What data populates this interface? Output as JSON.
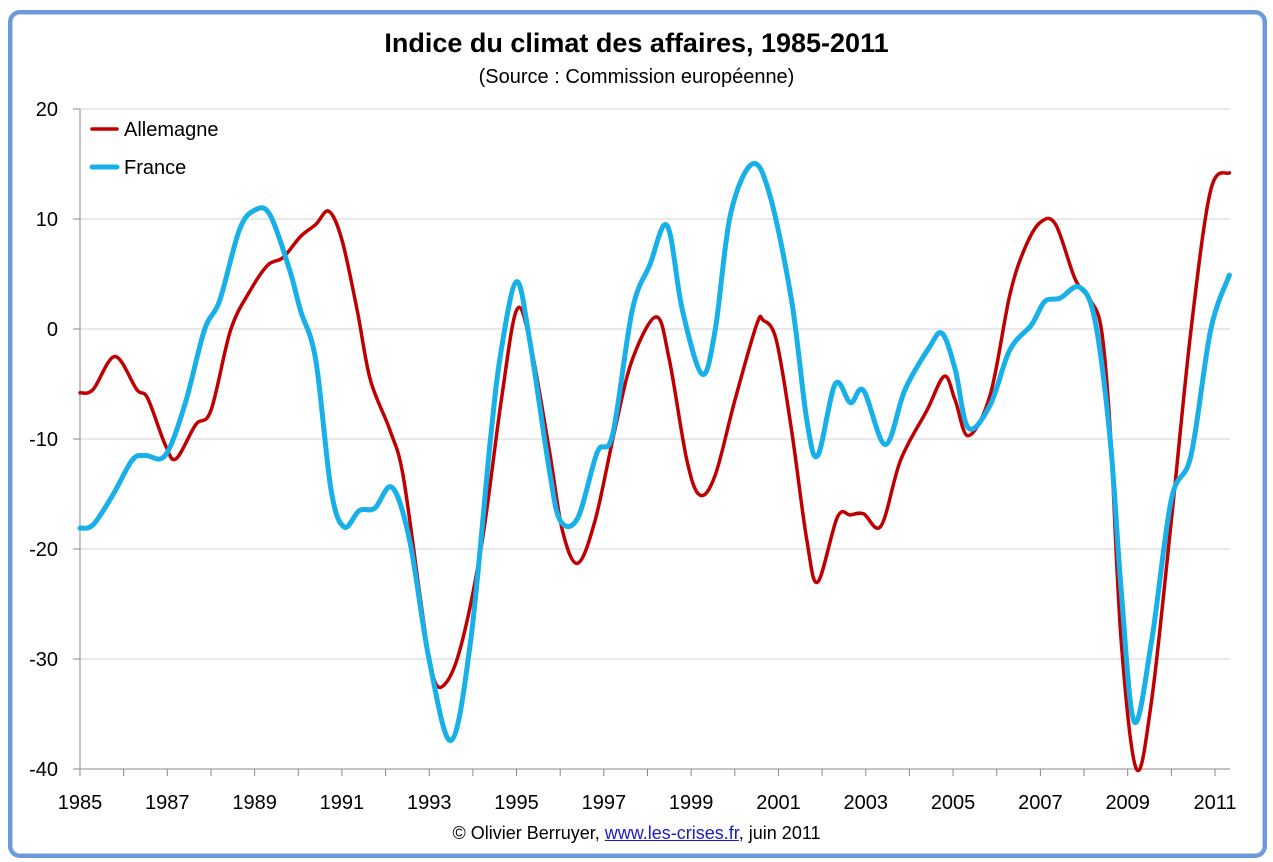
{
  "chart_data": {
    "type": "line",
    "title": "Indice du climat des affaires, 1985-2011",
    "subtitle": "(Source : Commission européenne)",
    "xlim": [
      1985,
      2011.35
    ],
    "ylim": [
      -40,
      20
    ],
    "x_ticks": [
      "1985",
      "1987",
      "1989",
      "1991",
      "1993",
      "1995",
      "1997",
      "1999",
      "2001",
      "2003",
      "2005",
      "2007",
      "2009",
      "2011"
    ],
    "y_ticks": [
      "20",
      "10",
      "0",
      "-10",
      "-20",
      "-30",
      "-40"
    ],
    "grid": "horizontal",
    "legend": "top-left",
    "series": [
      {
        "name": "Allemagne",
        "color": "#c00000",
        "points": [
          [
            1985,
            -5.8
          ],
          [
            1985.3,
            -5.5
          ],
          [
            1985.8,
            -2.5
          ],
          [
            1986.3,
            -5.5
          ],
          [
            1986.55,
            -6.3
          ],
          [
            1986.95,
            -10.5
          ],
          [
            1987.2,
            -11.8
          ],
          [
            1987.65,
            -8.7
          ],
          [
            1988,
            -7.4
          ],
          [
            1988.45,
            -0.1
          ],
          [
            1988.9,
            3.5
          ],
          [
            1989.3,
            5.8
          ],
          [
            1989.65,
            6.5
          ],
          [
            1990.05,
            8.4
          ],
          [
            1990.4,
            9.5
          ],
          [
            1990.7,
            10.7
          ],
          [
            1991,
            8.1
          ],
          [
            1991.35,
            1.7
          ],
          [
            1991.65,
            -4.6
          ],
          [
            1992.1,
            -9.2
          ],
          [
            1992.4,
            -13.3
          ],
          [
            1992.8,
            -24.6
          ],
          [
            1993.05,
            -31
          ],
          [
            1993.3,
            -32.5
          ],
          [
            1993.7,
            -29.2
          ],
          [
            1994.2,
            -19.6
          ],
          [
            1994.65,
            -6.5
          ],
          [
            1995,
            1.7
          ],
          [
            1995.3,
            -1
          ],
          [
            1995.75,
            -11
          ],
          [
            1996.05,
            -18.3
          ],
          [
            1996.4,
            -21.3
          ],
          [
            1996.8,
            -17.4
          ],
          [
            1997.25,
            -9.2
          ],
          [
            1997.65,
            -2.8
          ],
          [
            1998.2,
            1.1
          ],
          [
            1998.5,
            -2.8
          ],
          [
            1998.9,
            -11.9
          ],
          [
            1999.2,
            -15.1
          ],
          [
            1999.55,
            -13.3
          ],
          [
            2000,
            -6.5
          ],
          [
            2000.5,
            0.4
          ],
          [
            2000.65,
            0.8
          ],
          [
            2000.95,
            -1
          ],
          [
            2001.3,
            -9.2
          ],
          [
            2001.65,
            -19.2
          ],
          [
            2001.9,
            -23
          ],
          [
            2002.35,
            -17.1
          ],
          [
            2002.65,
            -16.9
          ],
          [
            2002.95,
            -16.8
          ],
          [
            2003.35,
            -17.9
          ],
          [
            2003.8,
            -11.9
          ],
          [
            2004.4,
            -7.4
          ],
          [
            2004.8,
            -4.3
          ],
          [
            2005.05,
            -6.5
          ],
          [
            2005.35,
            -9.7
          ],
          [
            2005.85,
            -6
          ],
          [
            2006.3,
            3.1
          ],
          [
            2006.65,
            7.4
          ],
          [
            2007,
            9.7
          ],
          [
            2007.35,
            9.5
          ],
          [
            2007.8,
            4.5
          ],
          [
            2008.15,
            2.6
          ],
          [
            2008.4,
            -0.1
          ],
          [
            2008.6,
            -9.2
          ],
          [
            2008.85,
            -28.3
          ],
          [
            2009.2,
            -40
          ],
          [
            2009.55,
            -33.7
          ],
          [
            2010,
            -17.4
          ],
          [
            2010.45,
            -0.1
          ],
          [
            2010.9,
            12.6
          ],
          [
            2011.33,
            14.2
          ]
        ]
      },
      {
        "name": "France",
        "color": "#17b0e8",
        "points": [
          [
            1985,
            -18.1
          ],
          [
            1985.3,
            -17.8
          ],
          [
            1985.75,
            -15.1
          ],
          [
            1986.2,
            -11.9
          ],
          [
            1986.5,
            -11.5
          ],
          [
            1986.95,
            -11.5
          ],
          [
            1987.4,
            -6.9
          ],
          [
            1987.85,
            -0.1
          ],
          [
            1988.2,
            2.6
          ],
          [
            1988.65,
            9
          ],
          [
            1989,
            10.8
          ],
          [
            1989.35,
            10.4
          ],
          [
            1989.8,
            5.4
          ],
          [
            1990.05,
            1.7
          ],
          [
            1990.4,
            -2.8
          ],
          [
            1990.75,
            -14.6
          ],
          [
            1991.05,
            -18
          ],
          [
            1991.4,
            -16.5
          ],
          [
            1991.75,
            -16.3
          ],
          [
            1992.15,
            -14.4
          ],
          [
            1992.55,
            -19.2
          ],
          [
            1993,
            -30.1
          ],
          [
            1993.5,
            -37.4
          ],
          [
            1993.95,
            -28.3
          ],
          [
            1994.4,
            -10.1
          ],
          [
            1994.65,
            -1.9
          ],
          [
            1995,
            4.3
          ],
          [
            1995.3,
            -1
          ],
          [
            1995.75,
            -12.8
          ],
          [
            1996,
            -17.4
          ],
          [
            1996.4,
            -17.2
          ],
          [
            1996.85,
            -11.2
          ],
          [
            1997.2,
            -9.6
          ],
          [
            1997.65,
            1.7
          ],
          [
            1998.05,
            5.8
          ],
          [
            1998.45,
            9.4
          ],
          [
            1998.8,
            1.7
          ],
          [
            1999.25,
            -4.1
          ],
          [
            1999.55,
            -0.1
          ],
          [
            1999.9,
            10.4
          ],
          [
            2000.4,
            15
          ],
          [
            2000.8,
            12.2
          ],
          [
            2001.3,
            2.6
          ],
          [
            2001.65,
            -8.3
          ],
          [
            2001.9,
            -11.5
          ],
          [
            2002.3,
            -5
          ],
          [
            2002.65,
            -6.7
          ],
          [
            2002.95,
            -5.6
          ],
          [
            2003.45,
            -10.5
          ],
          [
            2003.9,
            -5.5
          ],
          [
            2004.45,
            -1.7
          ],
          [
            2004.75,
            -0.4
          ],
          [
            2005.05,
            -3.7
          ],
          [
            2005.35,
            -9
          ],
          [
            2005.85,
            -6.9
          ],
          [
            2006.3,
            -1.9
          ],
          [
            2006.8,
            0.4
          ],
          [
            2007.1,
            2.5
          ],
          [
            2007.45,
            2.8
          ],
          [
            2007.9,
            3.8
          ],
          [
            2008.25,
            0.8
          ],
          [
            2008.6,
            -10.1
          ],
          [
            2008.85,
            -23.7
          ],
          [
            2009.15,
            -35.7
          ],
          [
            2009.55,
            -28.3
          ],
          [
            2010,
            -15.5
          ],
          [
            2010.45,
            -11.5
          ],
          [
            2010.9,
            -0.1
          ],
          [
            2011.33,
            4.9
          ]
        ]
      }
    ]
  },
  "footer": {
    "prefix": "© Olivier Berruyer, ",
    "link": "www.les-crises.fr",
    "suffix": ",  juin 2011"
  }
}
